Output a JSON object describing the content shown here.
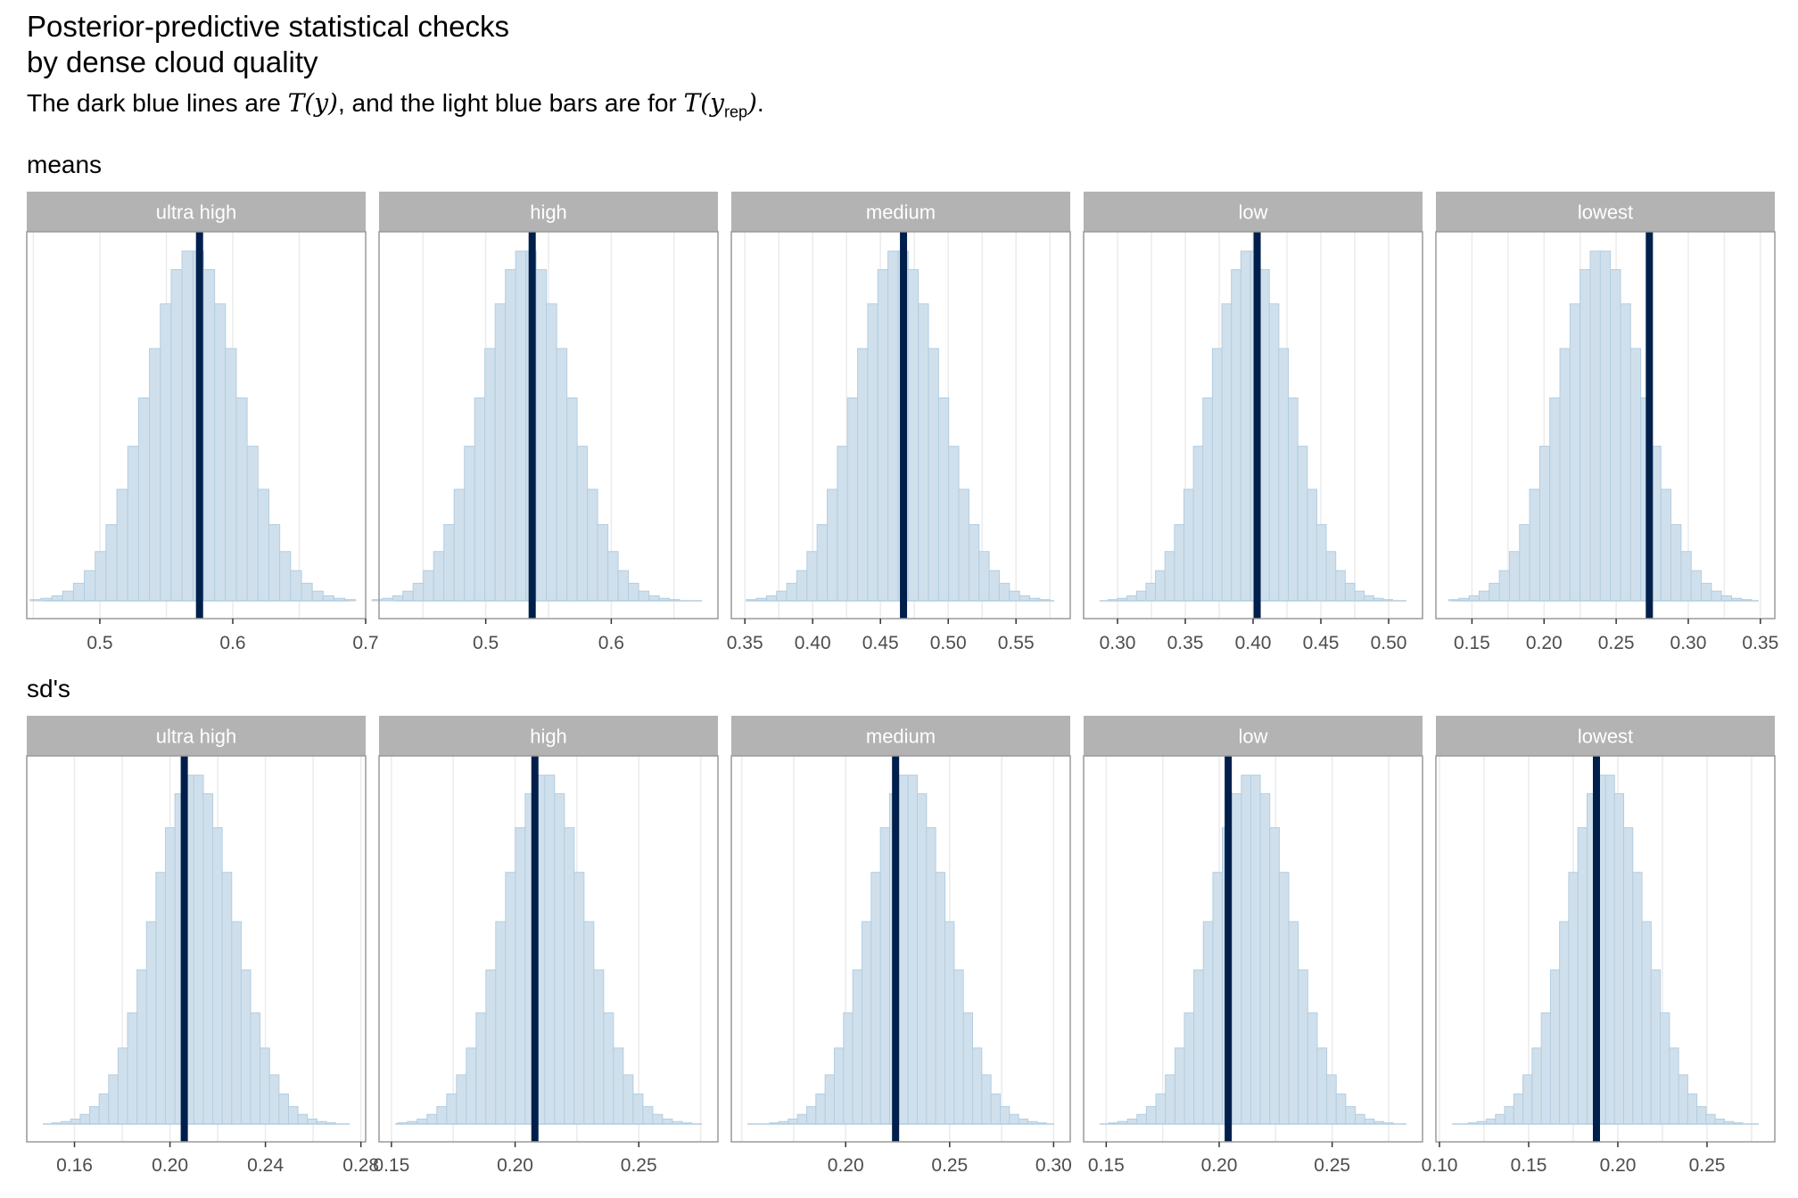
{
  "title_line1": "Posterior-predictive statistical checks",
  "title_line2": "by dense cloud quality",
  "subtitle": {
    "prefix": "The dark blue lines are ",
    "ty": "T(y)",
    "middle": ", and the light blue bars are for ",
    "tyrep_main": "T(y",
    "tyrep_sub": "rep",
    "tyrep_close": ")",
    "suffix": "."
  },
  "colors": {
    "bar_fill": "#cfe0ec",
    "bar_edge": "#b3cde0",
    "observed_line": "#011f4b",
    "strip": "#b3b3b3",
    "grid": "#ebebeb",
    "panel_border": "#9a9a9a"
  },
  "chart_data": [
    {
      "type": "bar",
      "row_label": "means",
      "panels": [
        {
          "label": "ultra high",
          "x_ticks": [
            0.5,
            0.6,
            0.7
          ],
          "x_tick_labels": [
            "0.5",
            "0.6",
            "0.7"
          ],
          "xlim": [
            0.445,
            0.7
          ],
          "observed": 0.575,
          "mean": 0.57,
          "sd": 0.035
        },
        {
          "label": "high",
          "x_ticks": [
            0.5,
            0.6
          ],
          "x_tick_labels": [
            "0.5",
            "0.6"
          ],
          "xlim": [
            0.415,
            0.685
          ],
          "observed": 0.537,
          "mean": 0.532,
          "sd": 0.035
        },
        {
          "label": "medium",
          "x_ticks": [
            0.35,
            0.4,
            0.45,
            0.5,
            0.55
          ],
          "x_tick_labels": [
            "0.35",
            "0.40",
            "0.45",
            "0.50",
            "0.55"
          ],
          "xlim": [
            0.34,
            0.59
          ],
          "observed": 0.467,
          "mean": 0.463,
          "sd": 0.032
        },
        {
          "label": "low",
          "x_ticks": [
            0.3,
            0.35,
            0.4,
            0.45,
            0.5
          ],
          "x_tick_labels": [
            "0.30",
            "0.35",
            "0.40",
            "0.45",
            "0.50"
          ],
          "xlim": [
            0.275,
            0.525
          ],
          "observed": 0.403,
          "mean": 0.398,
          "sd": 0.03
        },
        {
          "label": "lowest",
          "x_ticks": [
            0.15,
            0.2,
            0.25,
            0.3,
            0.35
          ],
          "x_tick_labels": [
            "0.15",
            "0.20",
            "0.25",
            "0.30",
            "0.35"
          ],
          "xlim": [
            0.125,
            0.36
          ],
          "observed": 0.273,
          "mean": 0.239,
          "sd": 0.03
        }
      ]
    },
    {
      "type": "bar",
      "row_label": "sd's",
      "panels": [
        {
          "label": "ultra high",
          "x_ticks": [
            0.16,
            0.2,
            0.24,
            0.28
          ],
          "x_tick_labels": [
            "0.16",
            "0.20",
            "0.24",
            "0.28"
          ],
          "xlim": [
            0.14,
            0.282
          ],
          "observed": 0.206,
          "mean": 0.21,
          "sd": 0.017
        },
        {
          "label": "high",
          "x_ticks": [
            0.15,
            0.2,
            0.25
          ],
          "x_tick_labels": [
            "0.15",
            "0.20",
            "0.25"
          ],
          "xlim": [
            0.145,
            0.282
          ],
          "observed": 0.208,
          "mean": 0.212,
          "sd": 0.017
        },
        {
          "label": "medium",
          "x_ticks": [
            0.2,
            0.25,
            0.3
          ],
          "x_tick_labels": [
            "0.20",
            "0.25",
            "0.30"
          ],
          "xlim": [
            0.145,
            0.308
          ],
          "observed": 0.224,
          "mean": 0.23,
          "sd": 0.019
        },
        {
          "label": "low",
          "x_ticks": [
            0.15,
            0.2,
            0.25
          ],
          "x_tick_labels": [
            "0.15",
            "0.20",
            "0.25"
          ],
          "xlim": [
            0.14,
            0.29
          ],
          "observed": 0.204,
          "mean": 0.214,
          "sd": 0.018
        },
        {
          "label": "lowest",
          "x_ticks": [
            0.1,
            0.15,
            0.2,
            0.25
          ],
          "x_tick_labels": [
            "0.10",
            "0.15",
            "0.20",
            "0.25"
          ],
          "xlim": [
            0.098,
            0.288
          ],
          "observed": 0.188,
          "mean": 0.193,
          "sd": 0.022
        }
      ]
    }
  ]
}
